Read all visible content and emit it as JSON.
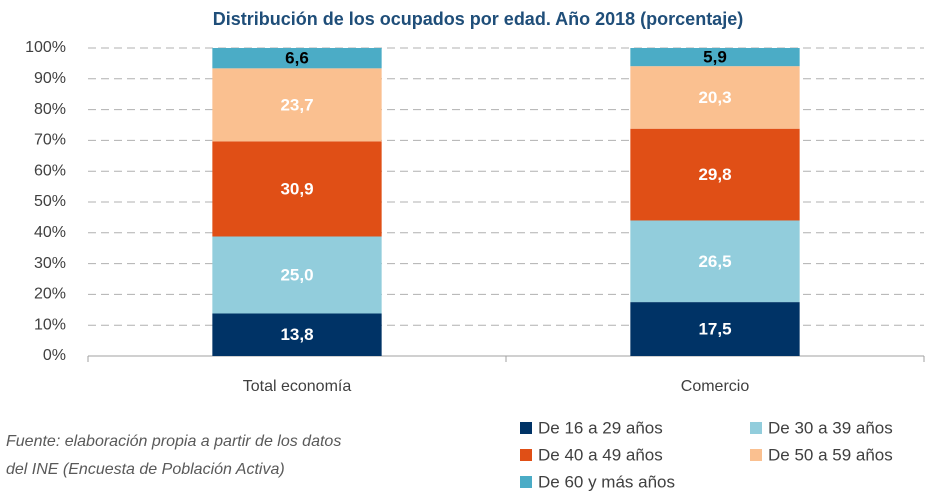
{
  "chart_data": {
    "type": "stacked_bar",
    "title": "Distribución de los ocupados por edad. Año 2018 (porcentaje)",
    "categories": [
      "Total economía",
      "Comercio"
    ],
    "series": [
      {
        "name": "De 16 a 29 años",
        "color": "#003366",
        "label_color": "#ffffff",
        "values": [
          13.8,
          17.5
        ],
        "value_labels": [
          "13,8",
          "17,5"
        ]
      },
      {
        "name": "De 30 a 39 años",
        "color": "#92cddc",
        "label_color": "#ffffff",
        "values": [
          25.0,
          26.5
        ],
        "value_labels": [
          "25,0",
          "26,5"
        ]
      },
      {
        "name": "De 40 a 49 años",
        "color": "#e04f16",
        "label_color": "#ffffff",
        "values": [
          30.9,
          29.8
        ],
        "value_labels": [
          "30,9",
          "29,8"
        ]
      },
      {
        "name": "De 50 a 59 años",
        "color": "#fac090",
        "label_color": "#ffffff",
        "values": [
          23.7,
          20.3
        ],
        "value_labels": [
          "23,7",
          "20,3"
        ]
      },
      {
        "name": "De 60 y más años",
        "color": "#4bacc6",
        "label_color": "#000000",
        "values": [
          6.6,
          5.9
        ],
        "value_labels": [
          "6,6",
          "5,9"
        ]
      }
    ],
    "ylim": [
      0,
      100
    ],
    "yticks": [
      {
        "value": 0,
        "label": "0%"
      },
      {
        "value": 10,
        "label": "10%"
      },
      {
        "value": 20,
        "label": "20%"
      },
      {
        "value": 30,
        "label": "30%"
      },
      {
        "value": 40,
        "label": "40%"
      },
      {
        "value": 50,
        "label": "50%"
      },
      {
        "value": 60,
        "label": "60%"
      },
      {
        "value": 70,
        "label": "70%"
      },
      {
        "value": 80,
        "label": "80%"
      },
      {
        "value": 90,
        "label": "90%"
      },
      {
        "value": 100,
        "label": "100%"
      }
    ],
    "grid": true,
    "note": [
      "Fuente: elaboración propia a partir de los datos",
      "del INE (Encuesta de Población Activa)"
    ]
  }
}
